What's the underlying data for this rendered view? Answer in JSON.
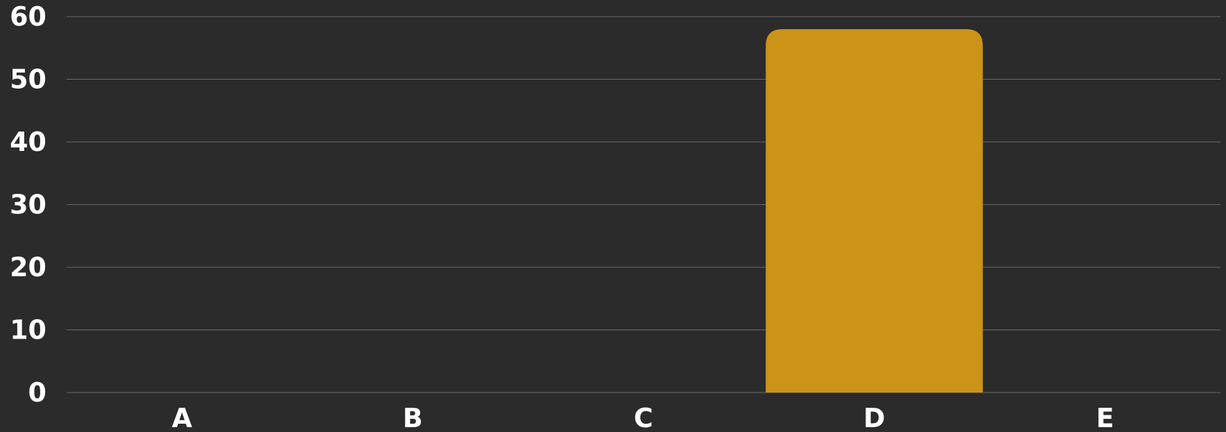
{
  "chart_data": {
    "type": "bar",
    "categories": [
      "A",
      "B",
      "C",
      "D",
      "E"
    ],
    "values": [
      0,
      0,
      0,
      58,
      0
    ],
    "ylim": [
      0,
      60
    ],
    "yticks": [
      0,
      10,
      20,
      30,
      40,
      50,
      60
    ],
    "grid": true,
    "title": "",
    "xlabel": "",
    "ylabel": "",
    "colors": {
      "background": "#2b2b2b",
      "bar": "#cc9416",
      "grid": "#6a6a6a",
      "text": "#ffffff"
    }
  }
}
